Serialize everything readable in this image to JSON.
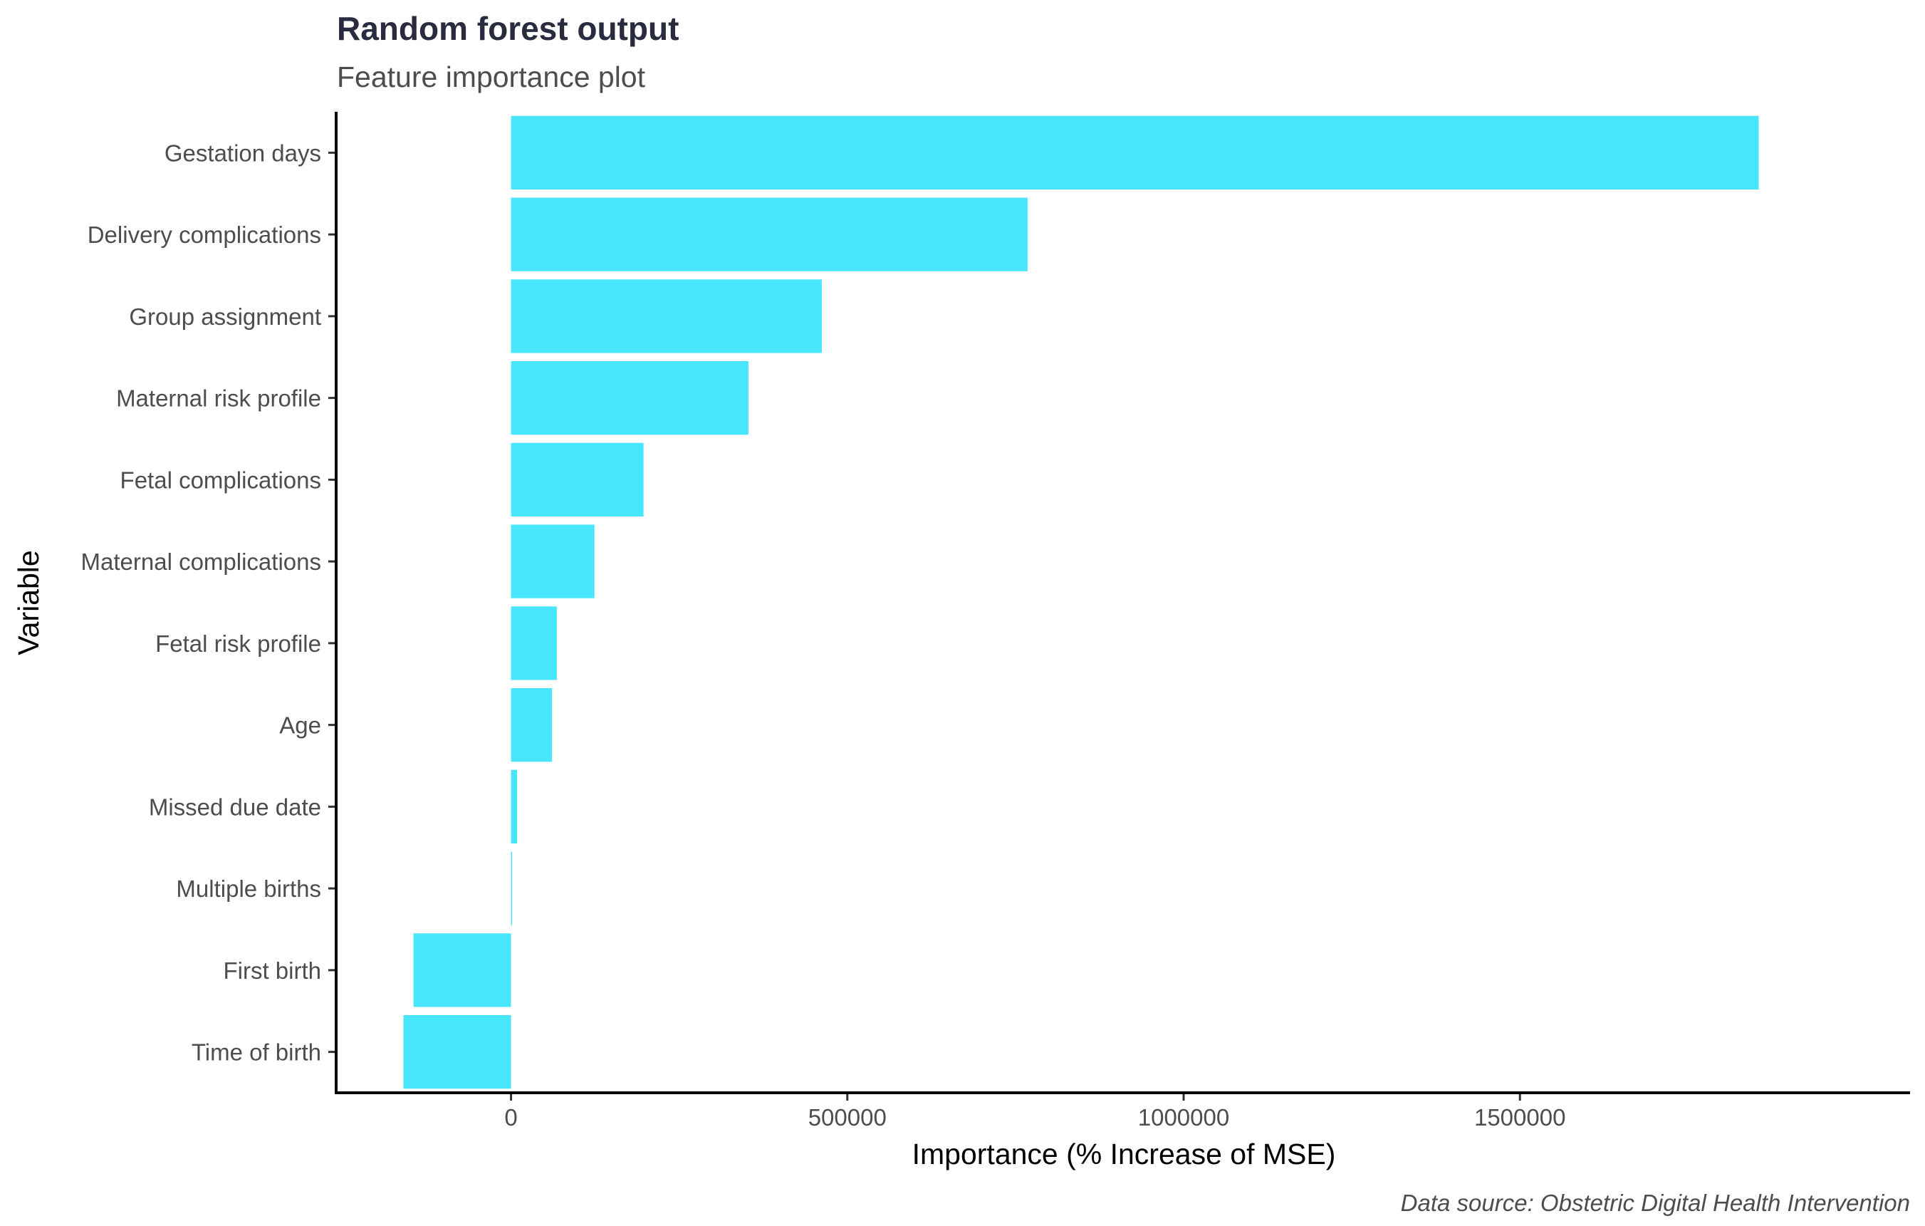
{
  "chart_data": {
    "type": "bar",
    "orientation": "horizontal",
    "title": "Random forest output",
    "subtitle": "Feature importance plot",
    "xlabel": "Importance (% Increase of MSE)",
    "ylabel": "Variable",
    "caption": "Data source: Obstetric Digital Health Intervention",
    "categories": [
      "Gestation days",
      "Delivery complications",
      "Group assignment",
      "Maternal risk profile",
      "Fetal complications",
      "Maternal complications",
      "Fetal risk profile",
      "Age",
      "Missed due date",
      "Multiple births",
      "First birth",
      "Time of birth"
    ],
    "values": [
      1855000,
      768000,
      462000,
      353000,
      197000,
      124000,
      68000,
      61000,
      9000,
      1000,
      -145000,
      -160000
    ],
    "xlim": [
      -260000,
      2080000
    ],
    "xticks": [
      0,
      500000,
      1000000,
      1500000
    ],
    "xtick_labels": [
      "0",
      "500000",
      "1000000",
      "1500000"
    ],
    "bar_color": "#48e6fc",
    "grid": false
  }
}
